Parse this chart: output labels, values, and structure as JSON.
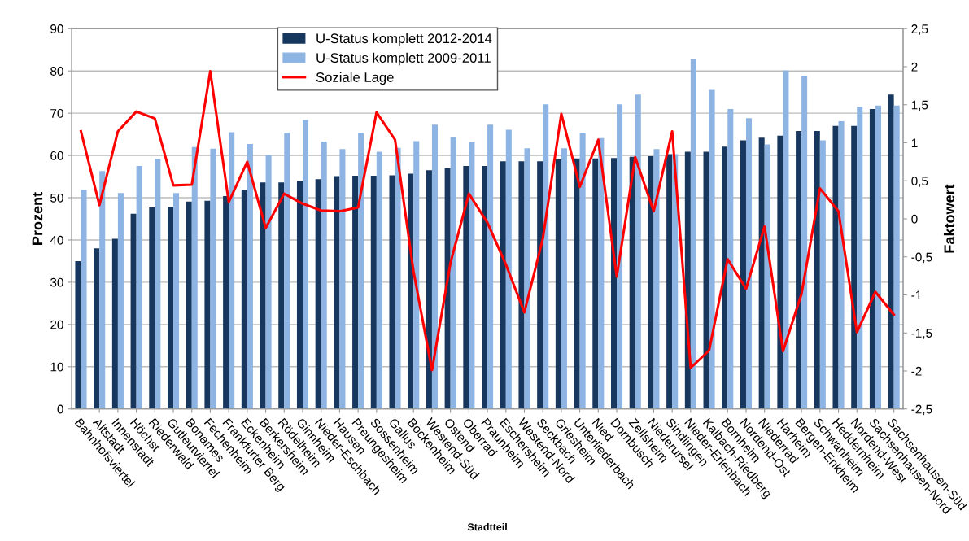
{
  "chart_data": {
    "type": "bar",
    "xlabel": "Stadtteil",
    "ylabel": "Prozent",
    "y2label": "Faktowert",
    "categories": [
      "Bahnhofsviertel",
      "Altstadt",
      "Innenstadt",
      "Höchst",
      "Riederwald",
      "Gutleutviertel",
      "Bonames",
      "Fechenheim",
      "Frankfurter Berg",
      "Eckenheim",
      "Berkersheim",
      "Rödelheim",
      "Ginnheim",
      "Nieder-Eschbach",
      "Hausen",
      "Preungesheim",
      "Sossenheim",
      "Gallus",
      "Bockenheim",
      "Westend-Süd",
      "Ostend",
      "Oberrad",
      "Praunheim",
      "Eschersheim",
      "Westend-Nord",
      "Seckbach",
      "Griesheim",
      "Unterliederbach",
      "Nied",
      "Dornbusch",
      "Zeilsheim",
      "Niederursel",
      "Sindlingen",
      "Nieder-Erlenbach",
      "Kalbach-Riedberg",
      "Bornheim",
      "Nordend-Ost",
      "Niederrad",
      "Harheim",
      "Bergen-Enkheim",
      "Schwanheim",
      "Heddernheim",
      "Nordend-West",
      "Sachsenhausen-Nord",
      "Sachsenhausen-Süd"
    ],
    "series": [
      {
        "name": "U-Status komplett 2012-2014",
        "color": "#17375e",
        "values": [
          35,
          38,
          40.3,
          46.2,
          47.7,
          47.8,
          49.1,
          49.3,
          50.4,
          51.9,
          53.6,
          53.6,
          54.0,
          54.4,
          55.1,
          55.2,
          55.2,
          55.3,
          55.7,
          56.5,
          57.0,
          57.5,
          57.5,
          58.6,
          58.6,
          58.6,
          59.1,
          59.3,
          59.3,
          59.4,
          59.7,
          59.8,
          60.3,
          60.9,
          60.9,
          62.1,
          63.6,
          64.2,
          64.7,
          65.8,
          65.8,
          67.0,
          67.0,
          71.0,
          74.4
        ]
      },
      {
        "name": "U-Status komplett 2009-2011",
        "color": "#8db4e2",
        "values": [
          51.9,
          56.3,
          51.1,
          57.5,
          59.2,
          51.1,
          62.0,
          61.6,
          65.5,
          62.7,
          60.1,
          65.4,
          68.4,
          63.3,
          61.5,
          65.4,
          60.9,
          61.8,
          63.4,
          67.3,
          64.4,
          63.1,
          67.3,
          66.1,
          61.7,
          72.1,
          61.7,
          65.4,
          64.1,
          72.1,
          74.4,
          61.5,
          60.3,
          82.9,
          75.5,
          71.0,
          68.8,
          62.6,
          80.1,
          78.9,
          63.6,
          68.1,
          71.5,
          71.8,
          71.8
        ]
      },
      {
        "name": "Soziale Lage",
        "type": "line",
        "axis": "y2",
        "color": "#ff0000",
        "values": [
          1.15,
          0.18,
          1.15,
          1.41,
          1.32,
          0.44,
          0.45,
          1.94,
          0.22,
          0.75,
          -0.12,
          0.33,
          0.2,
          0.11,
          0.1,
          0.15,
          1.4,
          1.04,
          -0.69,
          -1.99,
          -0.58,
          0.33,
          -0.05,
          -0.6,
          -1.23,
          -0.26,
          1.38,
          0.42,
          1.04,
          -0.76,
          0.81,
          0.1,
          1.15,
          -1.96,
          -1.73,
          -0.53,
          -0.92,
          -0.1,
          -1.74,
          -0.99,
          0.4,
          0.1,
          -1.49,
          -0.96,
          -1.26
        ]
      }
    ],
    "ylim": [
      0,
      90
    ],
    "yticks": [
      0,
      10,
      20,
      30,
      40,
      50,
      60,
      70,
      80,
      90
    ],
    "y2lim": [
      -2.5,
      2.5
    ],
    "y2ticks": [
      {
        "value": -2.5,
        "label": "-2,5"
      },
      {
        "value": -2,
        "label": "-2"
      },
      {
        "value": -1.5,
        "label": "-1,5"
      },
      {
        "value": -1,
        "label": "-1"
      },
      {
        "value": -0.5,
        "label": "-0,5"
      },
      {
        "value": 0,
        "label": "0"
      },
      {
        "value": 0.5,
        "label": "0,5"
      },
      {
        "value": 1,
        "label": "1"
      },
      {
        "value": 1.5,
        "label": "1,5"
      },
      {
        "value": 2,
        "label": "2"
      },
      {
        "value": 2.5,
        "label": "2,5"
      }
    ],
    "grid": "y",
    "legend": "top",
    "marker": "none",
    "line_style": "solid"
  }
}
